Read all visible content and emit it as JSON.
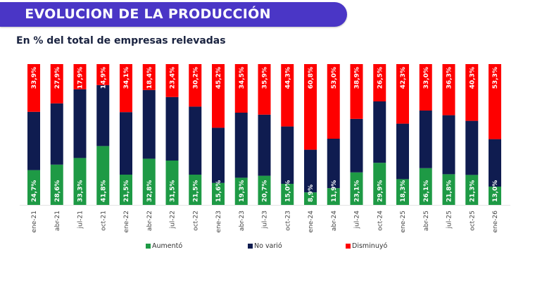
{
  "header": {
    "title": "EVOLUCION DE LA PRODUCCIÓN",
    "subtitle": "En % del total de empresas relevadas"
  },
  "colors": {
    "banner": "#4a36c6",
    "aumento": "#1e9a45",
    "no_vario": "#0f1c50",
    "disminuyo": "#fe0000"
  },
  "chart_data": {
    "type": "bar",
    "stacked": true,
    "title": "EVOLUCION DE LA PRODUCCIÓN",
    "subtitle": "En % del total de empresas relevadas",
    "xlabel": "",
    "ylabel": "",
    "ylim": [
      0,
      100
    ],
    "grid": false,
    "legend_position": "bottom",
    "categories": [
      "ene-21",
      "abr-21",
      "jul-21",
      "oct-21",
      "ene-22",
      "abr-22",
      "jul-22",
      "oct-22",
      "ene-23",
      "abr-23",
      "jul-23",
      "oct-23",
      "ene-24",
      "abr-24",
      "jul-24",
      "oct-24",
      "ene-25",
      "abr-25",
      "jul-25",
      "oct-25",
      "ene-26"
    ],
    "series": [
      {
        "name": "Aumentó",
        "color": "#1e9a45",
        "values": [
          24.7,
          28.6,
          33.3,
          41.8,
          21.5,
          32.8,
          31.5,
          21.5,
          15.6,
          19.3,
          20.7,
          15.0,
          8.9,
          11.9,
          23.1,
          29.9,
          18.3,
          26.1,
          21.8,
          21.3,
          13.0
        ]
      },
      {
        "name": "No varió",
        "color": "#0f1c50",
        "values": [
          41.4,
          43.5,
          48.8,
          43.3,
          44.4,
          48.8,
          45.1,
          48.3,
          39.2,
          46.2,
          43.4,
          40.7,
          30.3,
          35.1,
          38.0,
          43.6,
          39.4,
          40.9,
          41.9,
          38.4,
          33.7
        ]
      },
      {
        "name": "Disminuyó",
        "color": "#fe0000",
        "values": [
          33.9,
          27.9,
          17.9,
          14.9,
          34.1,
          18.4,
          23.4,
          30.2,
          45.2,
          34.5,
          35.9,
          44.3,
          60.8,
          53.0,
          38.9,
          26.5,
          42.3,
          33.0,
          36.3,
          40.3,
          53.3
        ]
      }
    ],
    "data_labels": {
      "Aumentó": [
        "24,7%",
        "28,6%",
        "33,3%",
        "41,8%",
        "21,5%",
        "32,8%",
        "31,5%",
        "21,5%",
        "15,6%",
        "19,3%",
        "20,7%",
        "15,0%",
        "8,9%",
        "11,9%",
        "23,1%",
        "29,9%",
        "18,3%",
        "26,1%",
        "21,8%",
        "21,3%",
        "13,0%"
      ],
      "Disminuyó": [
        "33,9%",
        "27,9%",
        "17,9%",
        "14,9%",
        "34,1%",
        "18,4%",
        "23,4%",
        "30,2%",
        "45,2%",
        "34,5%",
        "35,9%",
        "44,3%",
        "60,8%",
        "53,0%",
        "38,9%",
        "26,5%",
        "42,3%",
        "33,0%",
        "36,3%",
        "40,3%",
        "53,3%"
      ]
    }
  },
  "legend": [
    {
      "label": "Aumentó",
      "color": "#1e9a45"
    },
    {
      "label": "No varió",
      "color": "#0f1c50"
    },
    {
      "label": "Disminuyó",
      "color": "#fe0000"
    }
  ]
}
